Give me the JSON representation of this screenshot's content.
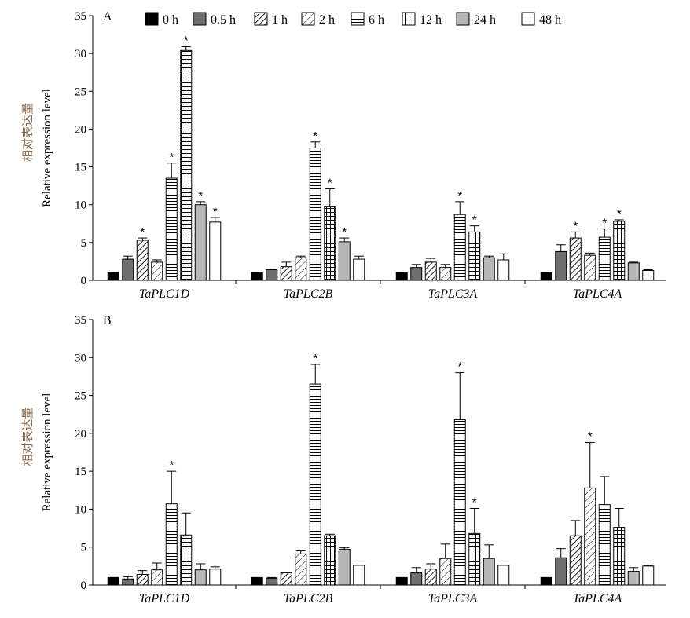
{
  "legend": {
    "series_names": [
      "0 h",
      "0.5 h",
      "1 h",
      "2 h",
      "6 h",
      "12 h",
      "24 h",
      "48 h"
    ]
  },
  "series_styles": [
    {
      "fill": "#000000",
      "pattern": "solid"
    },
    {
      "fill": "#6e6e6e",
      "pattern": "solid"
    },
    {
      "fill": "#ffffff",
      "pattern": "diag-dense"
    },
    {
      "fill": "#ffffff",
      "pattern": "diag-sparse"
    },
    {
      "fill": "#ffffff",
      "pattern": "horizontal"
    },
    {
      "fill": "#ffffff",
      "pattern": "grid"
    },
    {
      "fill": "#b8b8b8",
      "pattern": "solid"
    },
    {
      "fill": "#ffffff",
      "pattern": "solid"
    }
  ],
  "chart_data": [
    {
      "type": "bar",
      "panel_label": "A",
      "ylabel_cn": "相对表达量",
      "ylabel": "Relative expression level",
      "ylim": [
        0,
        35
      ],
      "yticks": [
        "0",
        "5",
        "10",
        "15",
        "20",
        "25",
        "30",
        "35"
      ],
      "categories": [
        "TaPLC1D",
        "TaPLC2B",
        "TaPLC3A",
        "TaPLC4A"
      ],
      "series": [
        {
          "name": "0 h",
          "values": [
            1.0,
            1.0,
            1.0,
            1.0
          ],
          "errors": [
            0,
            0,
            0,
            0
          ],
          "sig": [
            false,
            false,
            false,
            false
          ]
        },
        {
          "name": "0.5 h",
          "values": [
            2.8,
            1.4,
            1.7,
            3.8
          ],
          "errors": [
            0.4,
            0.1,
            0.4,
            0.9
          ],
          "sig": [
            false,
            false,
            false,
            false
          ]
        },
        {
          "name": "1 h",
          "values": [
            5.3,
            1.8,
            2.4,
            5.6
          ],
          "errors": [
            0.3,
            0.6,
            0.5,
            0.8
          ],
          "sig": [
            true,
            false,
            false,
            true
          ]
        },
        {
          "name": "2 h",
          "values": [
            2.4,
            3.0,
            1.7,
            3.3
          ],
          "errors": [
            0.3,
            0.2,
            0.4,
            0.3
          ],
          "sig": [
            false,
            false,
            false,
            false
          ]
        },
        {
          "name": "6 h",
          "values": [
            13.5,
            17.5,
            8.7,
            5.7
          ],
          "errors": [
            2.0,
            0.8,
            1.7,
            1.1
          ],
          "sig": [
            true,
            true,
            true,
            true
          ]
        },
        {
          "name": "12 h",
          "values": [
            30.4,
            9.8,
            6.4,
            7.8
          ],
          "errors": [
            0.5,
            2.3,
            0.8,
            0.2
          ],
          "sig": [
            true,
            true,
            true,
            true
          ]
        },
        {
          "name": "24 h",
          "values": [
            10.0,
            5.1,
            3.0,
            2.3
          ],
          "errors": [
            0.4,
            0.5,
            0.2,
            0.1
          ],
          "sig": [
            true,
            true,
            false,
            false
          ]
        },
        {
          "name": "48 h",
          "values": [
            7.7,
            2.8,
            2.7,
            1.3
          ],
          "errors": [
            0.6,
            0.4,
            0.8,
            0.1
          ],
          "sig": [
            true,
            false,
            false,
            false
          ]
        }
      ]
    },
    {
      "type": "bar",
      "panel_label": "B",
      "ylabel_cn": "相对表达量",
      "ylabel": "Relative expression level",
      "ylim": [
        0,
        35
      ],
      "yticks": [
        "0",
        "5",
        "10",
        "15",
        "20",
        "25",
        "30",
        "35"
      ],
      "categories": [
        "TaPLC1D",
        "TaPLC2B",
        "TaPLC3A",
        "TaPLC4A"
      ],
      "series": [
        {
          "name": "0 h",
          "values": [
            1.0,
            1.0,
            1.0,
            1.0
          ],
          "errors": [
            0,
            0,
            0,
            0
          ],
          "sig": [
            false,
            false,
            false,
            false
          ]
        },
        {
          "name": "0.5 h",
          "values": [
            0.8,
            0.9,
            1.6,
            3.6
          ],
          "errors": [
            0.3,
            0.1,
            0.7,
            1.2
          ],
          "sig": [
            false,
            false,
            false,
            false
          ]
        },
        {
          "name": "1 h",
          "values": [
            1.4,
            1.6,
            2.1,
            6.5
          ],
          "errors": [
            0.5,
            0.1,
            0.7,
            2.0
          ],
          "sig": [
            false,
            false,
            false,
            false
          ]
        },
        {
          "name": "2 h",
          "values": [
            2.0,
            4.1,
            3.5,
            12.8
          ],
          "errors": [
            0.9,
            0.4,
            1.9,
            6.0
          ],
          "sig": [
            false,
            false,
            false,
            true
          ]
        },
        {
          "name": "6 h",
          "values": [
            10.7,
            26.5,
            21.8,
            10.6
          ],
          "errors": [
            4.3,
            2.6,
            6.2,
            3.7
          ],
          "sig": [
            true,
            true,
            true,
            false
          ]
        },
        {
          "name": "12 h",
          "values": [
            6.6,
            6.5,
            6.8,
            7.6
          ],
          "errors": [
            2.9,
            0.2,
            3.3,
            2.5
          ],
          "sig": [
            false,
            false,
            true,
            false
          ]
        },
        {
          "name": "24 h",
          "values": [
            2.0,
            4.7,
            3.5,
            1.8
          ],
          "errors": [
            0.8,
            0.2,
            1.8,
            0.5
          ],
          "sig": [
            false,
            false,
            false,
            false
          ]
        },
        {
          "name": "48 h",
          "values": [
            2.1,
            2.6,
            2.6,
            2.5
          ],
          "errors": [
            0.3,
            0,
            0,
            0.1
          ],
          "sig": [
            false,
            false,
            false,
            false
          ]
        }
      ]
    }
  ]
}
